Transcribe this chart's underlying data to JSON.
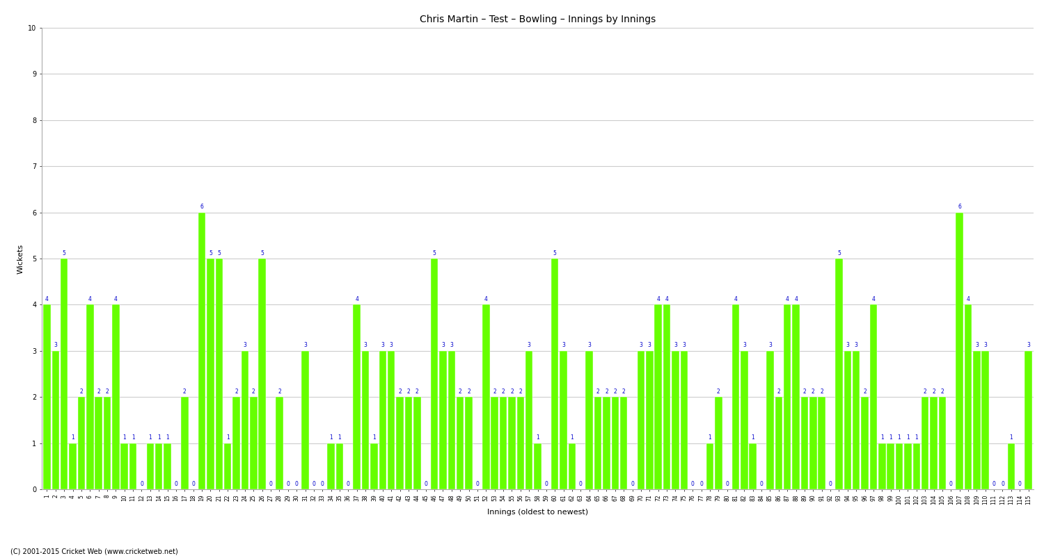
{
  "title": "Chris Martin – Test – Bowling – Innings by Innings",
  "ylabel": "Wickets",
  "xlabel": "Innings (oldest to newest)",
  "copyright": "(C) 2001-2015 Cricket Web (www.cricketweb.net)",
  "bar_color": "#66ff00",
  "bar_edge_color": "#ffffff",
  "label_color": "#0000cc",
  "bg_color": "#ffffff",
  "grid_color": "#cccccc",
  "ylim": [
    0,
    10
  ],
  "yticks": [
    0,
    1,
    2,
    3,
    4,
    5,
    6,
    7,
    8,
    9,
    10
  ],
  "values": [
    4,
    3,
    5,
    1,
    2,
    4,
    2,
    2,
    4,
    1,
    1,
    0,
    1,
    1,
    1,
    0,
    2,
    0,
    6,
    5,
    5,
    1,
    2,
    3,
    2,
    5,
    0,
    2,
    0,
    0,
    3,
    0,
    0,
    1,
    1,
    0,
    4,
    3,
    1,
    3,
    3,
    2,
    2,
    2,
    0,
    5,
    3,
    3,
    2,
    2,
    0,
    4,
    2,
    2,
    2,
    2,
    3,
    1,
    0,
    5,
    3,
    1,
    0,
    3,
    2,
    2,
    2,
    2,
    0,
    3,
    3,
    4,
    4,
    3,
    3,
    0,
    0,
    1,
    2,
    0,
    4,
    3,
    1,
    0,
    3,
    2,
    4,
    4,
    2,
    2,
    2,
    0,
    5,
    3,
    3,
    2,
    4,
    1,
    1,
    1,
    1,
    1,
    2,
    2,
    2,
    0,
    6,
    4,
    3,
    3,
    0,
    0,
    1,
    0,
    3
  ],
  "title_fontsize": 10,
  "tick_fontsize": 5.5,
  "axis_label_fontsize": 8,
  "value_fontsize": 5.5,
  "bar_width": 0.85
}
